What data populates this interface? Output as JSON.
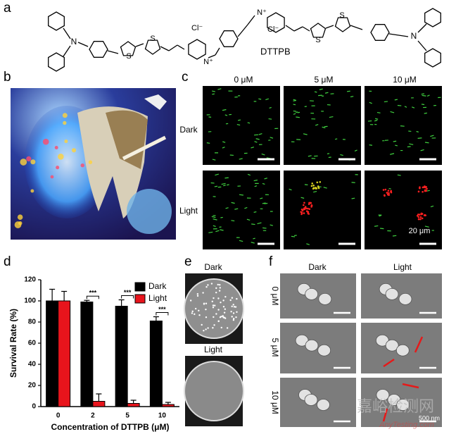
{
  "panels": [
    "a",
    "b",
    "c",
    "d",
    "e",
    "f"
  ],
  "structure": {
    "name": "DTTPB",
    "atoms": [
      "N",
      "S",
      "S",
      "N⁺",
      "N⁺",
      "S",
      "S",
      "N"
    ],
    "counterions": [
      "Cl⁻",
      "Cl⁻"
    ]
  },
  "panel_c": {
    "columns": [
      "0 μM",
      "5 μM",
      "10 μM"
    ],
    "rows": [
      "Dark",
      "Light"
    ],
    "scale_bar": "20 μm"
  },
  "panel_e": {
    "labels": [
      "Dark",
      "Light"
    ]
  },
  "panel_f": {
    "columns": [
      "Dark",
      "Light"
    ],
    "rows": [
      "0 μM",
      "5 μM",
      "10 μM"
    ],
    "scale_bar": "500 nm"
  },
  "watermark": [
    "嘉峪检测网",
    "AnyTesting.com"
  ],
  "chart_data": {
    "type": "bar",
    "xlabel": "Concentration of DTTPB (μM)",
    "ylabel": "Survival Rate (%)",
    "categories": [
      "0",
      "2",
      "5",
      "10"
    ],
    "series": [
      {
        "name": "Dark",
        "color": "#000000",
        "values": [
          100,
          99,
          95,
          81
        ],
        "errors": [
          11,
          1.5,
          6,
          4
        ]
      },
      {
        "name": "Light",
        "color": "#e8141c",
        "values": [
          100,
          5,
          3,
          2
        ],
        "errors": [
          9,
          7,
          3,
          2
        ]
      }
    ],
    "annotations": [
      "***",
      "***",
      "***"
    ],
    "ylim": [
      0,
      120
    ],
    "yticks": [
      0,
      20,
      40,
      60,
      80,
      100,
      120
    ],
    "legend": "upper right"
  }
}
